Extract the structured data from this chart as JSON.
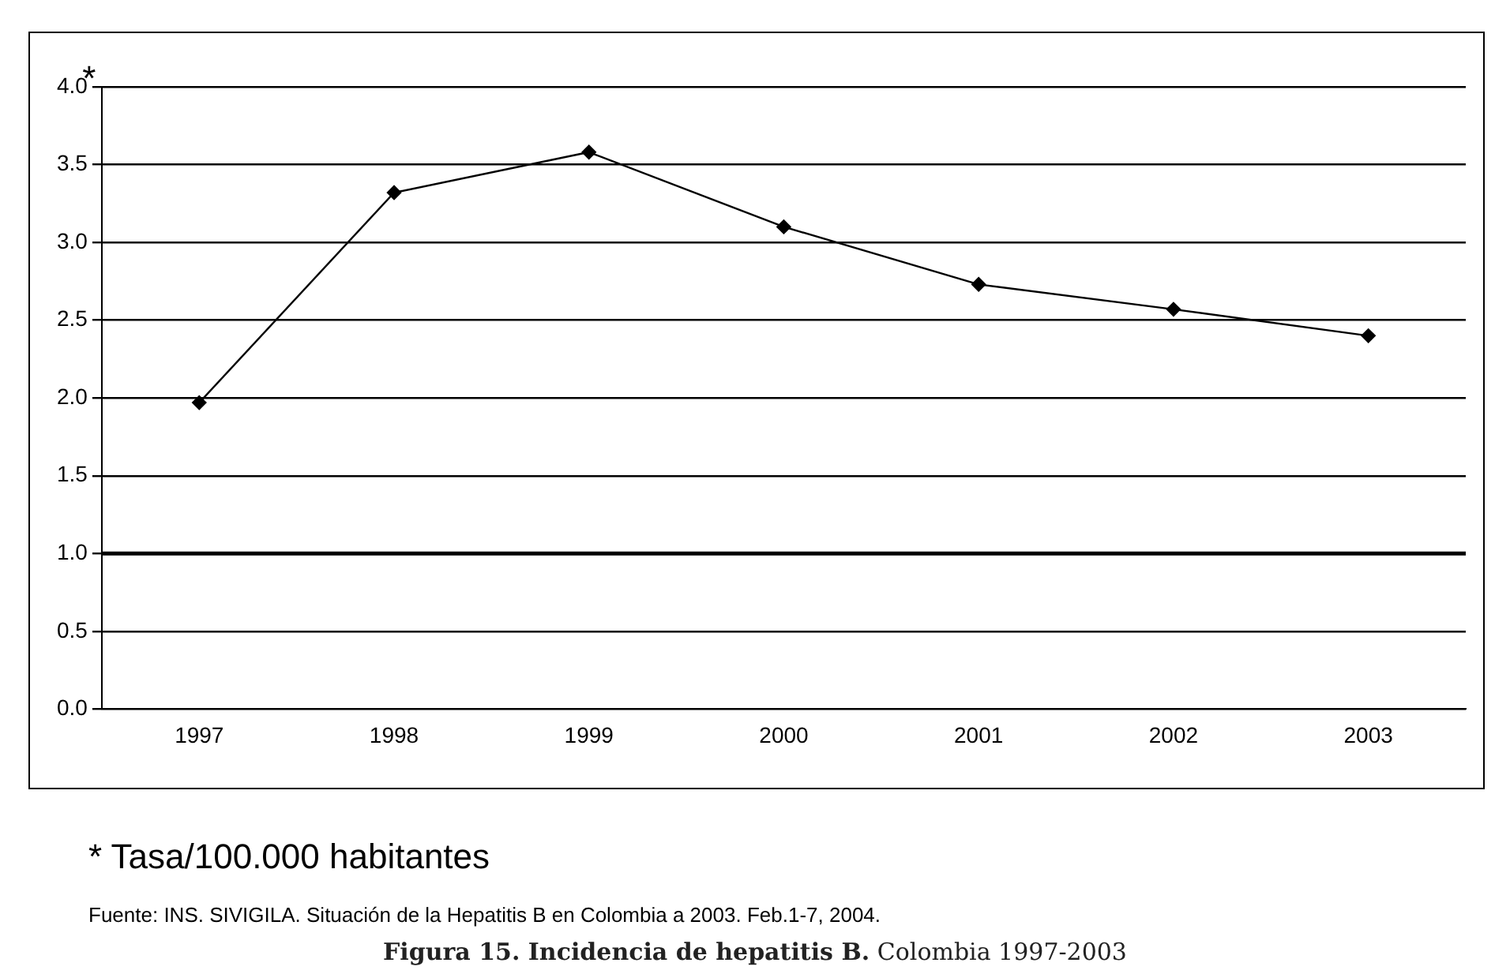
{
  "chart_data": {
    "type": "line",
    "title": "Figura 15. Incidencia de hepatitis B.",
    "subtitle": "Colombia 1997-2003",
    "ylabel": "*",
    "annotations": [
      "* Tasa/100.000 habitantes",
      "Fuente:  INS. SIVIGILA.   Situación de la Hepatitis B en Colombia a 2003. Feb.1-7, 2004."
    ],
    "categories": [
      "1997",
      "1998",
      "1999",
      "2000",
      "2001",
      "2002",
      "2003"
    ],
    "series": [
      {
        "color": "#000000",
        "values": [
          1.97,
          3.32,
          3.58,
          3.1,
          2.73,
          2.57,
          2.4
        ]
      }
    ],
    "ylim": [
      0,
      4
    ],
    "yticks": [
      {
        "value": 0,
        "label": "0.0"
      },
      {
        "value": 0.5,
        "label": "0.5"
      },
      {
        "value": 1,
        "label": "1.0"
      },
      {
        "value": 1.5,
        "label": "1.5"
      },
      {
        "value": 2,
        "label": "2.0"
      },
      {
        "value": 2.5,
        "label": "2.5"
      },
      {
        "value": 3,
        "label": "3.0"
      },
      {
        "value": 3.5,
        "label": "3.5"
      },
      {
        "value": 4,
        "label": "4.0"
      }
    ],
    "ref_lines": [
      {
        "axis": "y",
        "value": 1,
        "color": "#000000"
      }
    ],
    "grid": "y",
    "legend": false,
    "marker": "diamond",
    "line_style": "solid"
  }
}
